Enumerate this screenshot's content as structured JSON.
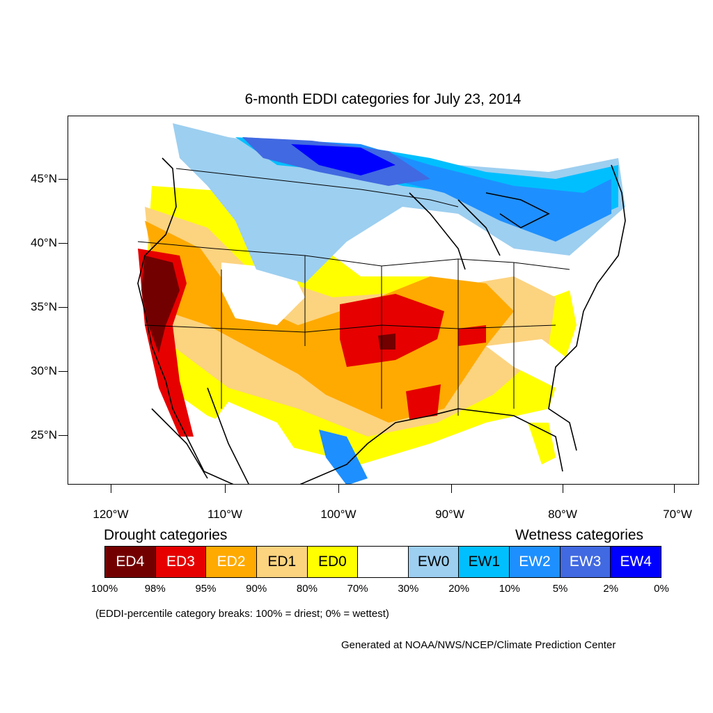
{
  "title": "6-month EDDI categories for July 23, 2014",
  "axes": {
    "y_ticks": [
      "45°N",
      "40°N",
      "35°N",
      "30°N",
      "25°N"
    ],
    "x_ticks": [
      "120°W",
      "110°W",
      "100°W",
      "90°W",
      "80°W",
      "70°W"
    ]
  },
  "legend": {
    "drought_header": "Drought categories",
    "wetness_header": "Wetness categories",
    "categories": [
      {
        "label": "ED4",
        "color": "#730000",
        "text_color": "#ffffff"
      },
      {
        "label": "ED3",
        "color": "#e60000",
        "text_color": "#ffffff"
      },
      {
        "label": "ED2",
        "color": "#ffaa00",
        "text_color": "#ffffff"
      },
      {
        "label": "ED1",
        "color": "#fcd37f",
        "text_color": "#000000"
      },
      {
        "label": "ED0",
        "color": "#ffff00",
        "text_color": "#000000"
      },
      {
        "label": "",
        "color": "#ffffff",
        "text_color": "#000000"
      },
      {
        "label": "EW0",
        "color": "#9dcff0",
        "text_color": "#000000"
      },
      {
        "label": "EW1",
        "color": "#00bfff",
        "text_color": "#000000"
      },
      {
        "label": "EW2",
        "color": "#1e8fff",
        "text_color": "#ffffff"
      },
      {
        "label": "EW3",
        "color": "#4169e1",
        "text_color": "#ffffff"
      },
      {
        "label": "EW4",
        "color": "#0000ff",
        "text_color": "#ffffff"
      }
    ],
    "percentiles": [
      "100%",
      "98%",
      "95%",
      "90%",
      "80%",
      "70%",
      "30%",
      "20%",
      "10%",
      "5%",
      "2%",
      "0%"
    ]
  },
  "note": "(EDDI-percentile category breaks: 100% = driest; 0% = wettest)",
  "credit": "Generated at NOAA/NWS/NCEP/Climate Prediction Center"
}
